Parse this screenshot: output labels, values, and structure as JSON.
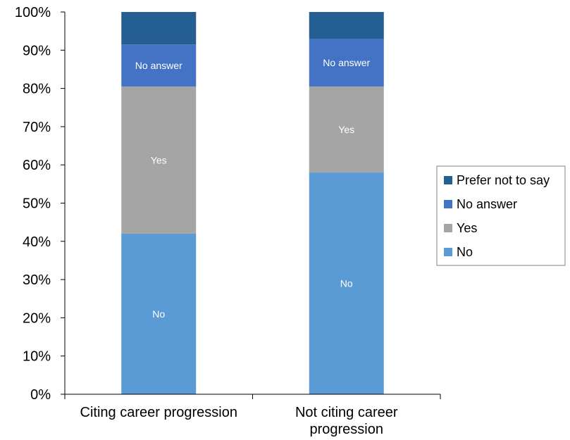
{
  "chart_data": {
    "type": "bar",
    "stacked": true,
    "percent_stacked": true,
    "categories": [
      "Citing career progression",
      "Not citing career progression"
    ],
    "series": [
      {
        "name": "No",
        "values": [
          42,
          58
        ],
        "color": "#5B9BD5",
        "segment_labels": [
          "No",
          "No"
        ]
      },
      {
        "name": "Yes",
        "values": [
          38.5,
          22.5
        ],
        "color": "#A5A5A5",
        "segment_labels": [
          "Yes",
          "Yes"
        ]
      },
      {
        "name": "No answer",
        "values": [
          11,
          12.5
        ],
        "color": "#4472C4",
        "segment_labels": [
          "No answer",
          "No answer"
        ]
      },
      {
        "name": "Prefer not to say",
        "values": [
          8.5,
          7
        ],
        "color": "#255E91",
        "segment_labels": [
          "",
          ""
        ]
      }
    ],
    "y_ticks": [
      "0%",
      "10%",
      "20%",
      "30%",
      "40%",
      "50%",
      "60%",
      "70%",
      "80%",
      "90%",
      "100%"
    ],
    "ylim": [
      0,
      100
    ],
    "legend_position": "right",
    "legend_order": [
      "Prefer not to say",
      "No answer",
      "Yes",
      "No"
    ],
    "grid": false
  }
}
